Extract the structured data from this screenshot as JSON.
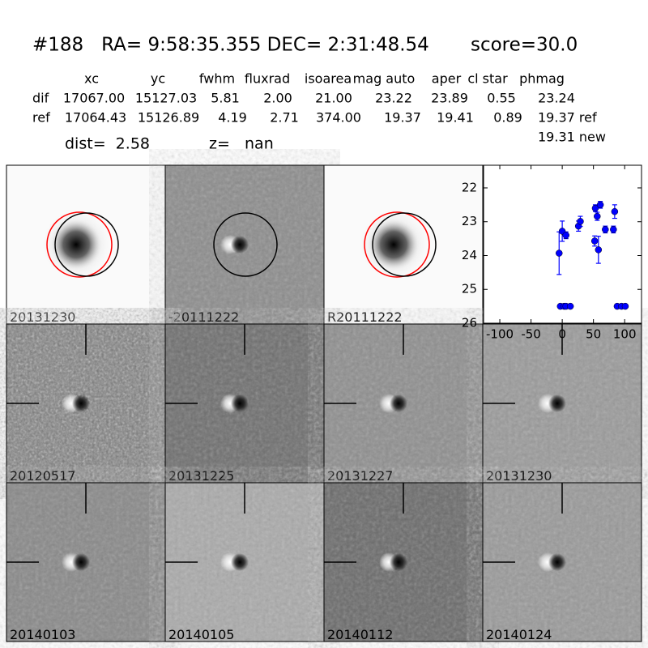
{
  "header": {
    "title": "#188   RA= 9:58:35.355 DEC= 2:31:48.54       score=30.0"
  },
  "table": {
    "columns": [
      "xc",
      "yc",
      "fwhm",
      "fluxrad",
      "isoarea",
      "mag auto",
      "aper",
      "cl star",
      "phmag"
    ],
    "rows": [
      [
        "dif",
        "17067.00",
        "15127.03",
        "5.81",
        "2.00",
        "21.00",
        "23.22",
        "23.89",
        "0.55",
        "23.24"
      ],
      [
        "ref",
        "17064.43",
        "15126.89",
        "4.19",
        "2.71",
        "374.00",
        "19.37",
        "19.41",
        "0.89",
        "19.37 ref"
      ]
    ],
    "extra": "19.31 new"
  },
  "dist": "dist=  2.58",
  "z": "z=   nan",
  "stamps": [
    "20131230",
    "-20111222",
    "R20111222",
    "20120517",
    "20131225",
    "20131227",
    "20131230",
    "20140103",
    "20140105",
    "20140112",
    "20140124"
  ],
  "chart_data": {
    "type": "scatter",
    "color": "#0000ff",
    "x": [
      -5,
      0,
      6,
      26,
      29,
      52,
      53,
      56,
      58,
      61,
      69,
      82,
      84,
      -3,
      3,
      6,
      13,
      88,
      95,
      101
    ],
    "values": [
      23.93,
      23.28,
      23.4,
      23.13,
      22.99,
      23.57,
      22.6,
      22.84,
      23.83,
      22.5,
      23.23,
      23.23,
      22.7,
      25.5,
      25.5,
      25.5,
      25.5,
      25.5,
      25.5,
      25.5
    ],
    "errors": [
      0.63,
      0.3,
      0.1,
      0.15,
      0.15,
      0.15,
      0.1,
      0.12,
      0.4,
      0.1,
      0.1,
      0.1,
      0.2,
      0,
      0,
      0,
      0,
      0,
      0,
      0
    ],
    "xlim": [
      -126,
      127
    ],
    "ylim": [
      26,
      21.33
    ],
    "xticks": [
      -100,
      -50,
      0,
      50,
      100
    ],
    "yticks": [
      22,
      23,
      24,
      25,
      26
    ]
  }
}
